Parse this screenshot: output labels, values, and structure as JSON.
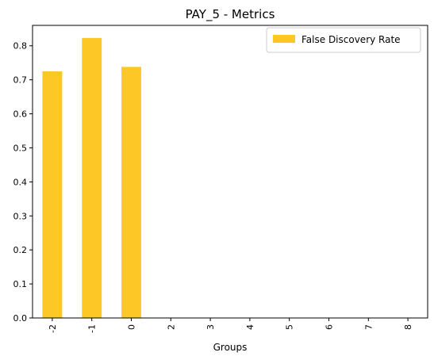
{
  "chart_data": {
    "type": "bar",
    "title": "PAY_5 - Metrics",
    "xlabel": "Groups",
    "ylabel": "",
    "categories": [
      "-2",
      "-1",
      "0",
      "2",
      "3",
      "4",
      "5",
      "6",
      "7",
      "8"
    ],
    "series": [
      {
        "name": "False Discovery Rate",
        "values": [
          0.725,
          0.823,
          0.738,
          0,
          0,
          0,
          0,
          0,
          0,
          0
        ],
        "color": "#FDC825"
      }
    ],
    "ylim": [
      0,
      0.86
    ],
    "yticks": [
      "0.0",
      "0.1",
      "0.2",
      "0.3",
      "0.4",
      "0.5",
      "0.6",
      "0.7",
      "0.8"
    ],
    "grid": false,
    "legend": "top-right"
  }
}
